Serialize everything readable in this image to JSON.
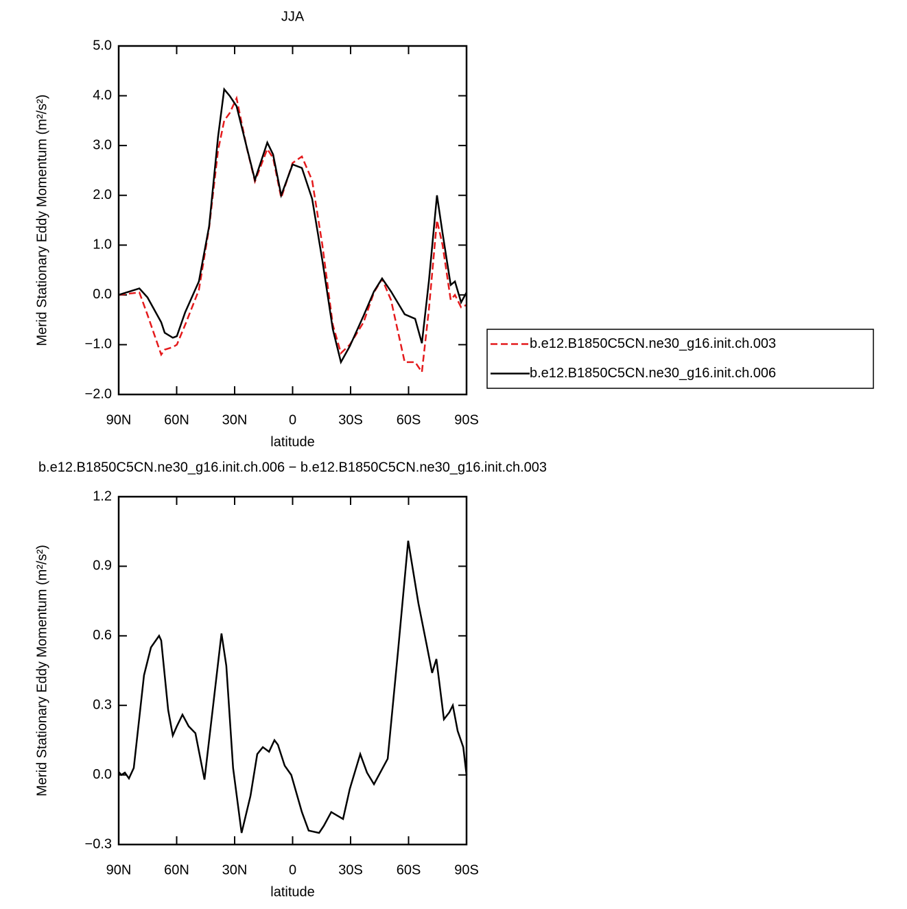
{
  "chart_data": [
    {
      "type": "line",
      "title": "JJA",
      "xlabel": "latitude",
      "ylabel": "Merid Stationary Eddy Momentum (m²/s²)",
      "x": [
        90,
        79.3,
        75.1,
        68,
        66.2,
        62,
        59.9,
        55.6,
        48.5,
        43.2,
        38.6,
        35.4,
        32.6,
        29,
        23.7,
        19.5,
        13.1,
        10.1,
        5.9,
        0,
        -4.8,
        -10.1,
        -15.4,
        -20.8,
        -25,
        -29.6,
        -36.7,
        -42.1,
        -46.3,
        -50.9,
        -58,
        -63.4,
        -66.9,
        -70.5,
        -74.7,
        -77.6,
        -81.8,
        -84,
        -87.2,
        -90
      ],
      "series": [
        {
          "name": "b.e12.B1850C5CN.ne30_g16.init.ch.003",
          "color": "#e41a1c",
          "line_style": "dashed",
          "values": [
            0,
            0.05,
            -0.4,
            -1.2,
            -1.1,
            -1.05,
            -1,
            -0.6,
            0.1,
            1.35,
            2.9,
            3.5,
            3.65,
            3.95,
            2.95,
            2.28,
            2.93,
            2.75,
            1.95,
            2.65,
            2.78,
            2.3,
            1,
            -0.6,
            -1.17,
            -1,
            -0.55,
            0.05,
            0.32,
            -0.1,
            -1.35,
            -1.35,
            -1.55,
            -0.3,
            1.5,
            1,
            -0.1,
            0,
            -0.25,
            -0.2
          ]
        },
        {
          "name": "b.e12.B1850C5CN.ne30_g16.init.ch.006",
          "color": "#000000",
          "line_style": "solid",
          "values": [
            0,
            0.13,
            -0.05,
            -0.55,
            -0.76,
            -0.86,
            -0.83,
            -0.35,
            0.27,
            1.38,
            3.17,
            4.13,
            4,
            3.79,
            2.96,
            2.31,
            3.06,
            2.82,
            2,
            2.62,
            2.55,
            1.93,
            0.69,
            -0.69,
            -1.35,
            -1.03,
            -0.42,
            0.07,
            0.33,
            0.07,
            -0.39,
            -0.48,
            -0.97,
            0.27,
            2,
            1.24,
            0.2,
            0.27,
            -0.15,
            0.05
          ]
        }
      ],
      "xlim": [
        90,
        -90
      ],
      "xticks": [
        {
          "value": 90,
          "label": "90N"
        },
        {
          "value": 60,
          "label": "60N"
        },
        {
          "value": 30,
          "label": "30N"
        },
        0,
        {
          "value": -30,
          "label": "30S"
        },
        {
          "value": -60,
          "label": "60S"
        },
        {
          "value": -90,
          "label": "90S"
        }
      ],
      "ylim": [
        -2,
        5
      ],
      "yticks": [
        {
          "value": -2,
          "label": "−2.0"
        },
        {
          "value": -1,
          "label": "−1.0"
        },
        {
          "value": 0,
          "label": "0.0"
        },
        {
          "value": 1,
          "label": "1.0"
        },
        {
          "value": 2,
          "label": "2.0"
        },
        {
          "value": 3,
          "label": "3.0"
        },
        {
          "value": 4,
          "label": "4.0"
        },
        {
          "value": 5,
          "label": "5.0"
        }
      ],
      "legend": "outside-right"
    },
    {
      "type": "line",
      "title": "b.e12.B1850C5CN.ne30_g16.init.ch.006 − b.e12.B1850C5CN.ne30_g16.init.ch.003",
      "xlabel": "latitude",
      "ylabel": "Merid Stationary Eddy Momentum (m²/s²)",
      "x": [
        90,
        88.6,
        86.8,
        84.7,
        82.2,
        76.9,
        73.3,
        69.1,
        68,
        64.4,
        62,
        59.9,
        57,
        53.8,
        50.3,
        45.6,
        41.4,
        36.8,
        34.3,
        30.8,
        26.4,
        21.8,
        18.3,
        15.4,
        12.2,
        9.4,
        7.6,
        4.1,
        0.7,
        -4.8,
        -8.3,
        -13.7,
        -16.1,
        -20,
        -26.1,
        -29.6,
        -35,
        -38.5,
        -42.1,
        -49.2,
        -54.5,
        -59.8,
        -65.1,
        -69.4,
        -72.2,
        -74.4,
        -78.3,
        -81.1,
        -82.9,
        -85.4,
        -88.3,
        -90
      ],
      "series": [
        {
          "color": "#000000",
          "line_style": "solid",
          "values": [
            0.013,
            0,
            0.01,
            -0.015,
            0.03,
            0.43,
            0.55,
            0.6,
            0.58,
            0.28,
            0.17,
            0.21,
            0.26,
            0.21,
            0.18,
            -0.02,
            0.28,
            0.61,
            0.47,
            0.03,
            -0.25,
            -0.09,
            0.09,
            0.12,
            0.1,
            0.15,
            0.13,
            0.04,
            0,
            -0.16,
            -0.24,
            -0.25,
            -0.22,
            -0.16,
            -0.19,
            -0.06,
            0.09,
            0.01,
            -0.04,
            0.07,
            0.53,
            1.01,
            0.74,
            0.56,
            0.44,
            0.5,
            0.24,
            0.27,
            0.3,
            0.19,
            0.12,
            0
          ]
        }
      ],
      "xlim": [
        90,
        -90
      ],
      "xticks": [
        {
          "value": 90,
          "label": "90N"
        },
        {
          "value": 60,
          "label": "60N"
        },
        {
          "value": 30,
          "label": "30N"
        },
        0,
        {
          "value": -30,
          "label": "30S"
        },
        {
          "value": -60,
          "label": "60S"
        },
        {
          "value": -90,
          "label": "90S"
        }
      ],
      "ylim": [
        -0.3,
        1.2
      ],
      "yticks": [
        {
          "value": -0.3,
          "label": "−0.3"
        },
        {
          "value": 0,
          "label": "0.0"
        },
        0.3,
        0.6,
        0.9,
        1.2
      ]
    }
  ]
}
